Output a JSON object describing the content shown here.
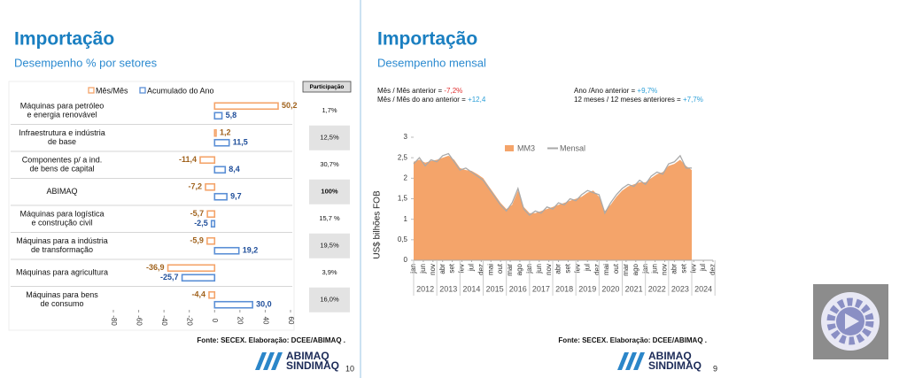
{
  "chart_data": [
    {
      "type": "bar",
      "orientation": "horizontal",
      "title": "Importação",
      "subtitle": "Desempenho % por setores",
      "categories": [
        [
          "Máquinas para petróleo",
          "e energia renovável"
        ],
        [
          "Infraestrutura e indústria",
          "de base"
        ],
        [
          "Componentes p/ a ind.",
          "de bens de capital"
        ],
        [
          "ABIMAQ"
        ],
        [
          "Máquinas para logística",
          "e construção civil"
        ],
        [
          "Máquinas para a indústria",
          "de transformação"
        ],
        [
          "Máquinas para agricultura"
        ],
        [
          "Máquinas para bens",
          "de consumo"
        ]
      ],
      "series": [
        {
          "name": "Mês/Mês",
          "color": "#f4a46a",
          "label_color": "#a0621c",
          "values": [
            50.2,
            1.2,
            -11.4,
            -7.2,
            -5.7,
            -5.9,
            -36.9,
            -4.4
          ],
          "value_labels": [
            "50,2",
            "1,2",
            "-11,4",
            "-7,2",
            "-5,7",
            "-5,9",
            "-36,9",
            "-4,4"
          ]
        },
        {
          "name": "Acumulado do Ano",
          "color": "#5b8fd6",
          "label_color": "#1f4e9a",
          "values": [
            5.8,
            11.5,
            8.4,
            9.7,
            -2.5,
            19.2,
            -25.7,
            30.0
          ],
          "value_labels": [
            "5,8",
            "11,5",
            "8,4",
            "9,7",
            "-2,5",
            "19,2",
            "-25,7",
            "30,0"
          ]
        }
      ],
      "xlim": [
        -80,
        60
      ],
      "xticks": [
        -80,
        -60,
        -40,
        -20,
        0,
        20,
        40,
        60
      ],
      "participation_header": "Participação",
      "participation": [
        "1,7%",
        "12,5%",
        "30,7%",
        "100%",
        "15,7 %",
        "19,5%",
        "3,9%",
        "16,0%"
      ],
      "source": "Fonte: SECEX. Elaboração: DCEE/ABIMAQ .",
      "logo": [
        "ABIMAQ",
        "SINDIMAQ"
      ],
      "page": 10
    },
    {
      "type": "line",
      "title": "Importação",
      "subtitle": "Desempenho mensal",
      "annotations": [
        {
          "text": "Mês / Mês anterior = ",
          "value": "-7,2%",
          "color": "#e03030"
        },
        {
          "text": "Mês / Mês do ano anterior = ",
          "value": "+12,4",
          "color": "#2ea0d8"
        },
        {
          "text": "Ano /Ano anterior = ",
          "value": "+9,7%",
          "color": "#2ea0d8"
        },
        {
          "text": "12 meses / 12 meses anteriores = ",
          "value": "+7,7%",
          "color": "#2ea0d8"
        }
      ],
      "y_label": "US$ bilhões FOB",
      "x": [
        "2012-01",
        "2012-04",
        "2012-07",
        "2012-10",
        "2013-01",
        "2013-04",
        "2013-07",
        "2013-10",
        "2014-01",
        "2014-04",
        "2014-07",
        "2014-10",
        "2015-01",
        "2015-04",
        "2015-07",
        "2015-10",
        "2016-01",
        "2016-04",
        "2016-07",
        "2016-10",
        "2017-01",
        "2017-04",
        "2017-07",
        "2017-10",
        "2018-01",
        "2018-04",
        "2018-07",
        "2018-10",
        "2019-01",
        "2019-04",
        "2019-07",
        "2019-10",
        "2020-01",
        "2020-04",
        "2020-07",
        "2020-10",
        "2021-01",
        "2021-04",
        "2021-07",
        "2021-10",
        "2022-01",
        "2022-04",
        "2022-07",
        "2022-10",
        "2023-01",
        "2023-04",
        "2023-07",
        "2023-10",
        "2024-01"
      ],
      "series": [
        {
          "name": "MM3",
          "kind": "area",
          "color": "#f4a46a",
          "values": [
            2.4,
            2.45,
            2.38,
            2.42,
            2.45,
            2.5,
            2.55,
            2.45,
            2.25,
            2.2,
            2.18,
            2.1,
            2.0,
            1.8,
            1.6,
            1.4,
            1.25,
            1.35,
            1.7,
            1.3,
            1.15,
            1.15,
            1.2,
            1.25,
            1.3,
            1.35,
            1.4,
            1.45,
            1.5,
            1.55,
            1.65,
            1.7,
            1.55,
            1.2,
            1.35,
            1.55,
            1.7,
            1.8,
            1.85,
            1.9,
            1.9,
            2.0,
            2.1,
            2.15,
            2.3,
            2.35,
            2.45,
            2.3,
            2.2
          ]
        },
        {
          "name": "Mensal",
          "kind": "line",
          "color": "#a9a9a9",
          "values": [
            2.35,
            2.5,
            2.3,
            2.45,
            2.4,
            2.55,
            2.6,
            2.4,
            2.2,
            2.25,
            2.15,
            2.05,
            1.95,
            1.75,
            1.55,
            1.35,
            1.2,
            1.4,
            1.75,
            1.25,
            1.1,
            1.2,
            1.15,
            1.3,
            1.25,
            1.4,
            1.35,
            1.5,
            1.45,
            1.6,
            1.7,
            1.65,
            1.6,
            1.15,
            1.4,
            1.6,
            1.75,
            1.85,
            1.8,
            1.95,
            1.85,
            2.05,
            2.15,
            2.1,
            2.35,
            2.4,
            2.55,
            2.25,
            2.25
          ]
        }
      ],
      "xlim": [
        "2012-01",
        "2024-12"
      ],
      "xticks": [
        {
          "value": "2012-01",
          "label": "jan"
        },
        {
          "value": "2012-06",
          "label": "jun"
        },
        {
          "value": "2012-11",
          "label": "nov"
        },
        {
          "value": "2013-04",
          "label": "abr"
        },
        {
          "value": "2013-09",
          "label": "set"
        },
        {
          "value": "2014-02",
          "label": "fev"
        },
        {
          "value": "2014-07",
          "label": "jul"
        },
        {
          "value": "2014-12",
          "label": "dez"
        },
        {
          "value": "2015-05",
          "label": "mai"
        },
        {
          "value": "2015-10",
          "label": "out"
        },
        {
          "value": "2016-03",
          "label": "mar"
        },
        {
          "value": "2016-08",
          "label": "ago"
        },
        {
          "value": "2017-01",
          "label": "jan"
        },
        {
          "value": "2017-06",
          "label": "jun"
        },
        {
          "value": "2017-11",
          "label": "nov"
        },
        {
          "value": "2018-04",
          "label": "abr"
        },
        {
          "value": "2018-09",
          "label": "set"
        },
        {
          "value": "2019-02",
          "label": "fev"
        },
        {
          "value": "2019-07",
          "label": "jul"
        },
        {
          "value": "2019-12",
          "label": "dez"
        },
        {
          "value": "2020-05",
          "label": "mai"
        },
        {
          "value": "2020-10",
          "label": "out"
        },
        {
          "value": "2021-03",
          "label": "mar"
        },
        {
          "value": "2021-08",
          "label": "ago"
        },
        {
          "value": "2022-01",
          "label": "jan"
        },
        {
          "value": "2022-06",
          "label": "jun"
        },
        {
          "value": "2022-11",
          "label": "nov"
        },
        {
          "value": "2023-04",
          "label": "abr"
        },
        {
          "value": "2023-09",
          "label": "set"
        },
        {
          "value": "2024-02",
          "label": "fev"
        },
        {
          "value": "2024-07",
          "label": "jul"
        },
        {
          "value": "2024-12",
          "label": "dez"
        }
      ],
      "years": [
        2012,
        2013,
        2014,
        2015,
        2016,
        2017,
        2018,
        2019,
        2020,
        2021,
        2022,
        2023,
        2024
      ],
      "ylim": [
        0,
        3
      ],
      "yticks": [
        0,
        {
          "value": 0.5,
          "label": "0,5"
        },
        1,
        {
          "value": 1.5,
          "label": "1,5"
        },
        2,
        {
          "value": 2.5,
          "label": "2,5"
        },
        3
      ],
      "source": "Fonte: SECEX. Elaboração: DCEE/ABIMAQ .",
      "logo": [
        "ABIMAQ",
        "SINDIMAQ"
      ],
      "page": 9
    }
  ]
}
